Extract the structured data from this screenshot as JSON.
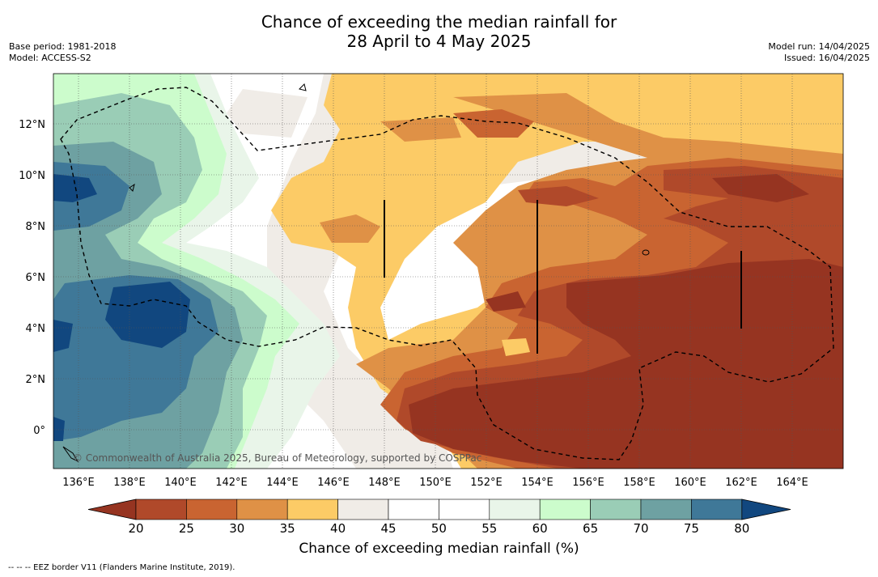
{
  "header": {
    "title_line1": "Chance of exceeding the median rainfall for",
    "title_line2": "28 April to 4 May 2025",
    "base_period": "Base period: 1981-2018",
    "model": "Model: ACCESS-S2",
    "model_run": "Model run: 14/04/2025",
    "issued": "Issued: 16/04/2025"
  },
  "map": {
    "lon_ticks": [
      "136°E",
      "138°E",
      "140°E",
      "142°E",
      "144°E",
      "146°E",
      "148°E",
      "150°E",
      "152°E",
      "154°E",
      "156°E",
      "158°E",
      "160°E",
      "162°E",
      "164°E"
    ],
    "lat_ticks": [
      "12°N",
      "10°N",
      "8°N",
      "6°N",
      "4°N",
      "2°N",
      "0°"
    ],
    "copyright": "© Commonwealth of Australia 2025, Bureau of Meteorology, supported by COSPPac",
    "overlays": [
      "eez-border-dashed",
      "coastline"
    ]
  },
  "colorbar": {
    "title": "Chance of exceeding median rainfall (%)",
    "ticks": [
      "20",
      "25",
      "30",
      "35",
      "40",
      "45",
      "50",
      "55",
      "60",
      "65",
      "70",
      "75",
      "80"
    ],
    "colors": {
      "lt20": "#963421",
      "b20_25": "#b0492a",
      "b25_30": "#c96431",
      "b30_35": "#df9146",
      "b35_40": "#fccb66",
      "b40_45": "#f0ece7",
      "b45_50": "#ffffff",
      "b50_55": "#ffffff",
      "b55_60": "#e9f5e9",
      "b60_65": "#ccfccc",
      "b65_70": "#9acdb6",
      "b70_75": "#6ea1a2",
      "b75_80": "#3f7898",
      "gt80": "#11477f"
    }
  },
  "footnote": "--  --  -- EEZ border V11 (Flanders Marine Institute, 2019)."
}
